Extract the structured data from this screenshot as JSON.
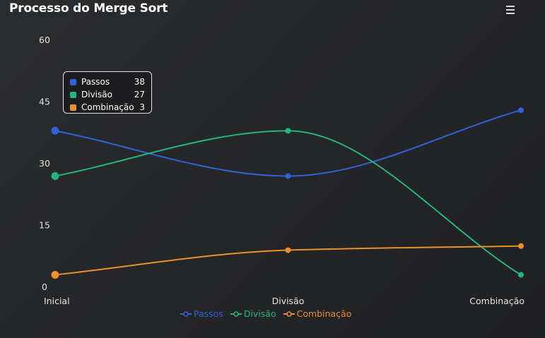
{
  "title": "Processo do Merge Sort",
  "menu_icon": "hamburger-menu-icon",
  "chart_data": {
    "type": "line",
    "categories": [
      "Inicial",
      "Divisão",
      "Combinação"
    ],
    "series": [
      {
        "name": "Passos",
        "values": [
          38,
          27,
          43
        ],
        "color": "#2f63d6"
      },
      {
        "name": "Divisão",
        "values": [
          27,
          38,
          3
        ],
        "color": "#25b47e"
      },
      {
        "name": "Combinação",
        "values": [
          3,
          9,
          10
        ],
        "color": "#ec8f2f"
      }
    ],
    "yticks": [
      0,
      15,
      30,
      45,
      60
    ],
    "ylim": [
      0,
      60
    ],
    "grid": false,
    "legend": "bottom-center",
    "tooltip": {
      "category": "Inicial",
      "rows": [
        {
          "name": "Passos",
          "value": "38"
        },
        {
          "name": "Divisão",
          "value": "27"
        },
        {
          "name": "Combinação",
          "value": "3"
        }
      ]
    }
  }
}
